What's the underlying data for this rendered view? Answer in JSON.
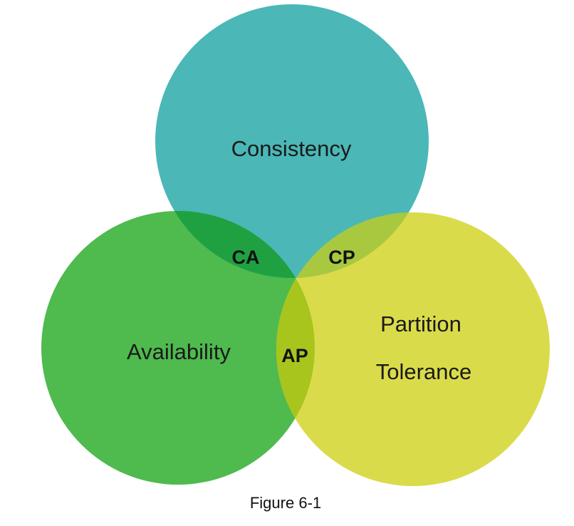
{
  "diagram": {
    "sets": [
      {
        "id": "consistency",
        "label_lines": [
          "Consistency"
        ],
        "color": "#4bb7b7"
      },
      {
        "id": "availability",
        "label_lines": [
          "Availability"
        ],
        "color": "#4fba4e"
      },
      {
        "id": "partition",
        "label_lines": [
          "Partition",
          "Tolerance"
        ],
        "color": "#dadb4a"
      }
    ],
    "intersections": [
      {
        "id": "ca",
        "label": "CA",
        "color": "#1fa142"
      },
      {
        "id": "cp",
        "label": "CP",
        "color": "#a8c840"
      },
      {
        "id": "ap",
        "label": "AP",
        "color": "#a7c51d"
      }
    ]
  },
  "caption": "Figure 6-1"
}
